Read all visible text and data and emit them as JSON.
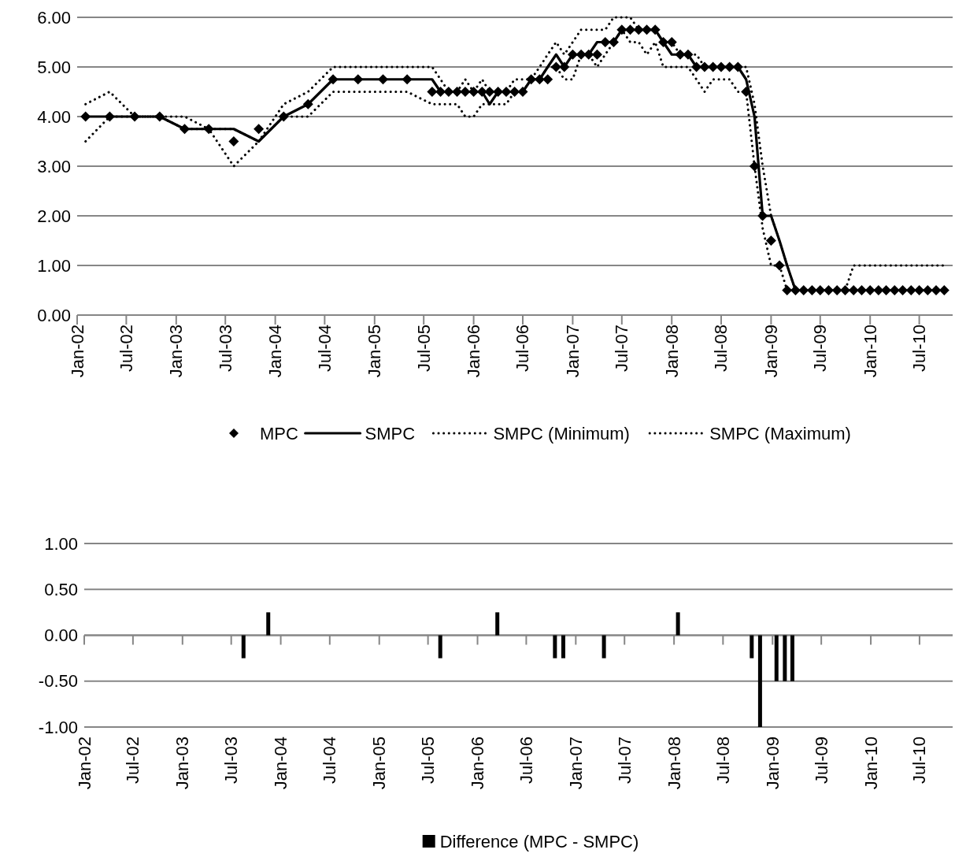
{
  "chart_data": [
    {
      "type": "line",
      "x": [
        "2002-02",
        "2002-05",
        "2002-08",
        "2002-11",
        "2003-02",
        "2003-05",
        "2003-08",
        "2003-11",
        "2004-02",
        "2004-05",
        "2004-08",
        "2004-11",
        "2005-02",
        "2005-05",
        "2005-08",
        "2005-09",
        "2005-10",
        "2005-11",
        "2005-12",
        "2006-01",
        "2006-02",
        "2006-03",
        "2006-04",
        "2006-05",
        "2006-06",
        "2006-07",
        "2006-08",
        "2006-09",
        "2006-10",
        "2006-11",
        "2006-12",
        "2007-01",
        "2007-02",
        "2007-03",
        "2007-04",
        "2007-05",
        "2007-06",
        "2007-07",
        "2007-08",
        "2007-09",
        "2007-10",
        "2007-11",
        "2007-12",
        "2008-01",
        "2008-02",
        "2008-03",
        "2008-04",
        "2008-05",
        "2008-06",
        "2008-07",
        "2008-08",
        "2008-09",
        "2008-10",
        "2008-11",
        "2008-12",
        "2009-01",
        "2009-02",
        "2009-03",
        "2009-04",
        "2009-05",
        "2009-06",
        "2009-07",
        "2009-08",
        "2009-09",
        "2009-10",
        "2009-11",
        "2009-12",
        "2010-01",
        "2010-02",
        "2010-03",
        "2010-04",
        "2010-05",
        "2010-06",
        "2010-07",
        "2010-08",
        "2010-09",
        "2010-10"
      ],
      "series": [
        {
          "name": "MPC",
          "type": "scatter",
          "marker": "diamond",
          "color": "#000000",
          "values": [
            4,
            4,
            4,
            4,
            3.75,
            3.75,
            3.5,
            3.75,
            4,
            4.25,
            4.75,
            4.75,
            4.75,
            4.75,
            4.5,
            4.5,
            4.5,
            4.5,
            4.5,
            4.5,
            4.5,
            4.5,
            4.5,
            4.5,
            4.5,
            4.5,
            4.75,
            4.75,
            4.75,
            5,
            5,
            5.25,
            5.25,
            5.25,
            5.25,
            5.5,
            5.5,
            5.75,
            5.75,
            5.75,
            5.75,
            5.75,
            5.5,
            5.5,
            5.25,
            5.25,
            5,
            5,
            5,
            5,
            5,
            5,
            4.5,
            3,
            2,
            1.5,
            1,
            0.5,
            0.5,
            0.5,
            0.5,
            0.5,
            0.5,
            0.5,
            0.5,
            0.5,
            0.5,
            0.5,
            0.5,
            0.5,
            0.5,
            0.5,
            0.5,
            0.5,
            0.5,
            0.5,
            0.5
          ]
        },
        {
          "name": "SMPC",
          "line_style": "solid",
          "color": "#000000",
          "values": [
            4,
            4,
            4,
            4,
            3.75,
            3.75,
            3.75,
            3.5,
            4,
            4.25,
            4.75,
            4.75,
            4.75,
            4.75,
            4.75,
            4.5,
            4.5,
            4.5,
            4.5,
            4.5,
            4.5,
            4.25,
            4.5,
            4.5,
            4.5,
            4.5,
            4.75,
            4.75,
            5,
            5.25,
            5,
            5.25,
            5.25,
            5.25,
            5.5,
            5.5,
            5.5,
            5.75,
            5.75,
            5.75,
            5.75,
            5.75,
            5.5,
            5.25,
            5.25,
            5.25,
            5,
            5,
            5,
            5,
            5,
            5,
            4.75,
            4,
            2,
            2,
            1.5,
            1,
            0.5,
            0.5,
            0.5,
            0.5,
            0.5,
            0.5,
            0.5,
            0.5,
            0.5,
            0.5,
            0.5,
            0.5,
            0.5,
            0.5,
            0.5,
            0.5,
            0.5,
            0.5,
            0.5
          ]
        },
        {
          "name": "SMPC (Minimum)",
          "line_style": "dotted",
          "color": "#000000",
          "values": [
            3.5,
            4,
            4,
            4,
            3.75,
            3.75,
            3,
            3.5,
            4,
            4,
            4.5,
            4.5,
            4.5,
            4.5,
            4.25,
            4.25,
            4.25,
            4.25,
            4,
            4,
            4.25,
            4.25,
            4.25,
            4.25,
            4.5,
            4.5,
            4.75,
            4.75,
            5,
            5,
            4.75,
            4.75,
            5.25,
            5.25,
            5,
            5.25,
            5.5,
            5.75,
            5.5,
            5.5,
            5.25,
            5.5,
            5,
            5,
            5,
            5,
            4.75,
            4.5,
            4.75,
            4.75,
            4.75,
            4.5,
            4.5,
            3,
            1.75,
            1,
            1,
            0.5,
            0.5,
            0.5,
            0.5,
            0.5,
            0.5,
            0.5,
            0.5,
            0.5,
            0.5,
            0.5,
            0.5,
            0.5,
            0.5,
            0.5,
            0.5,
            0.5,
            0.5,
            0.5,
            0.5
          ]
        },
        {
          "name": "SMPC (Maximum)",
          "line_style": "dotted",
          "color": "#000000",
          "values": [
            4.25,
            4.5,
            4,
            4,
            4,
            3.75,
            3.75,
            3.5,
            4.25,
            4.5,
            5,
            5,
            5,
            5,
            5,
            4.75,
            4.5,
            4.5,
            4.75,
            4.5,
            4.75,
            4.5,
            4.5,
            4.5,
            4.75,
            4.75,
            4.75,
            5,
            5.25,
            5.5,
            5.25,
            5.5,
            5.75,
            5.75,
            5.75,
            5.75,
            6,
            6,
            6,
            5.75,
            5.75,
            5.75,
            5.5,
            5.5,
            5.25,
            5.25,
            5.25,
            5,
            5,
            5,
            5,
            5,
            5,
            4.25,
            3,
            2,
            1.5,
            1,
            0.5,
            0.5,
            0.5,
            0.5,
            0.5,
            0.5,
            0.5,
            1,
            1,
            1,
            1,
            1,
            1,
            1,
            1,
            1,
            1,
            1,
            1
          ]
        }
      ],
      "xlim": [
        "2002-01",
        "2010-11"
      ],
      "xticks": [
        {
          "value": "2002-01",
          "label": "Jan-02"
        },
        {
          "value": "2002-07",
          "label": "Jul-02"
        },
        {
          "value": "2003-01",
          "label": "Jan-03"
        },
        {
          "value": "2003-07",
          "label": "Jul-03"
        },
        {
          "value": "2004-01",
          "label": "Jan-04"
        },
        {
          "value": "2004-07",
          "label": "Jul-04"
        },
        {
          "value": "2005-01",
          "label": "Jan-05"
        },
        {
          "value": "2005-07",
          "label": "Jul-05"
        },
        {
          "value": "2006-01",
          "label": "Jan-06"
        },
        {
          "value": "2006-07",
          "label": "Jul-06"
        },
        {
          "value": "2007-01",
          "label": "Jan-07"
        },
        {
          "value": "2007-07",
          "label": "Jul-07"
        },
        {
          "value": "2008-01",
          "label": "Jan-08"
        },
        {
          "value": "2008-07",
          "label": "Jul-08"
        },
        {
          "value": "2009-01",
          "label": "Jan-09"
        },
        {
          "value": "2009-07",
          "label": "Jul-09"
        },
        {
          "value": "2010-01",
          "label": "Jan-10"
        },
        {
          "value": "2010-07",
          "label": "Jul-10"
        }
      ],
      "ylim": [
        0,
        6
      ],
      "yticks": [
        {
          "value": 0,
          "label": "0.00"
        },
        {
          "value": 1,
          "label": "1.00"
        },
        {
          "value": 2,
          "label": "2.00"
        },
        {
          "value": 3,
          "label": "3.00"
        },
        {
          "value": 4,
          "label": "4.00"
        },
        {
          "value": 5,
          "label": "5.00"
        },
        {
          "value": 6,
          "label": "6.00"
        }
      ],
      "grid": "y",
      "legend": "bottom"
    },
    {
      "type": "bar",
      "x": [
        "2003-08",
        "2003-11",
        "2005-08",
        "2006-03",
        "2006-10",
        "2006-11",
        "2007-04",
        "2008-01",
        "2008-10",
        "2008-11",
        "2009-01",
        "2009-02",
        "2009-03"
      ],
      "series": [
        {
          "name": "Difference (MPC - SMPC)",
          "color": "#000000",
          "values": [
            -0.25,
            0.25,
            -0.25,
            0.25,
            -0.25,
            -0.25,
            -0.25,
            0.25,
            -0.25,
            -1,
            -0.5,
            -0.5,
            -0.5
          ]
        }
      ],
      "xlim": [
        "2002-01",
        "2010-11"
      ],
      "xticks": [
        {
          "value": "2002-01",
          "label": "Jan-02"
        },
        {
          "value": "2002-07",
          "label": "Jul-02"
        },
        {
          "value": "2003-01",
          "label": "Jan-03"
        },
        {
          "value": "2003-07",
          "label": "Jul-03"
        },
        {
          "value": "2004-01",
          "label": "Jan-04"
        },
        {
          "value": "2004-07",
          "label": "Jul-04"
        },
        {
          "value": "2005-01",
          "label": "Jan-05"
        },
        {
          "value": "2005-07",
          "label": "Jul-05"
        },
        {
          "value": "2006-01",
          "label": "Jan-06"
        },
        {
          "value": "2006-07",
          "label": "Jul-06"
        },
        {
          "value": "2007-01",
          "label": "Jan-07"
        },
        {
          "value": "2007-07",
          "label": "Jul-07"
        },
        {
          "value": "2008-01",
          "label": "Jan-08"
        },
        {
          "value": "2008-07",
          "label": "Jul-08"
        },
        {
          "value": "2009-01",
          "label": "Jan-09"
        },
        {
          "value": "2009-07",
          "label": "Jul-09"
        },
        {
          "value": "2010-01",
          "label": "Jan-10"
        },
        {
          "value": "2010-07",
          "label": "Jul-10"
        }
      ],
      "ylim": [
        -1,
        1
      ],
      "yticks": [
        {
          "value": -1,
          "label": "-1.00"
        },
        {
          "value": -0.5,
          "label": "-0.50"
        },
        {
          "value": 0,
          "label": "0.00"
        },
        {
          "value": 0.5,
          "label": "0.50"
        },
        {
          "value": 1,
          "label": "1.00"
        }
      ],
      "grid": "y",
      "legend": "bottom"
    }
  ]
}
